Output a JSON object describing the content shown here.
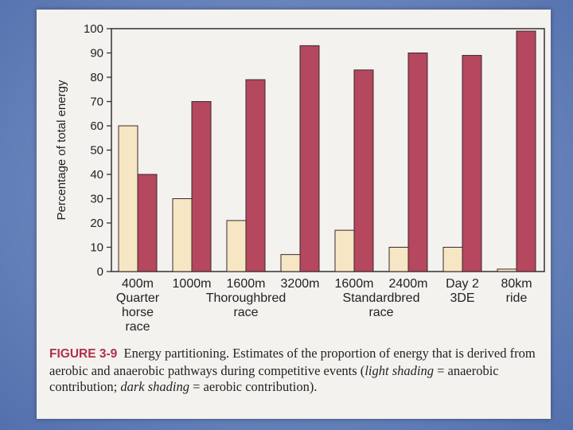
{
  "chart_data": {
    "type": "bar",
    "ylabel": "Percentage of total energy",
    "ylim": [
      0,
      100
    ],
    "yticks": [
      0,
      10,
      20,
      30,
      40,
      50,
      60,
      70,
      80,
      90,
      100
    ],
    "categories": [
      [
        "400m",
        "Quarter",
        "horse",
        "race"
      ],
      [
        "1000m"
      ],
      [
        "1600m"
      ],
      [
        "3200m"
      ],
      [
        "1600m"
      ],
      [
        "2400m"
      ],
      [
        "Day 2",
        "3DE"
      ],
      [
        "80km",
        "ride"
      ]
    ],
    "group_labels": [
      {
        "lines": [
          "Thoroughbred",
          "race"
        ],
        "span": [
          1,
          3
        ]
      },
      {
        "lines": [
          "Standardbred",
          "race"
        ],
        "span": [
          4,
          5
        ]
      }
    ],
    "series": [
      {
        "key": "anaerobic",
        "values": [
          60,
          30,
          21,
          7,
          17,
          10,
          10,
          1
        ],
        "color": "#f7e6c4"
      },
      {
        "key": "aerobic",
        "values": [
          40,
          70,
          79,
          93,
          83,
          90,
          89,
          99
        ],
        "color": "#b5475f"
      }
    ],
    "grid": false
  },
  "caption": {
    "figure_number": "FIGURE 3-9",
    "text_before": "Energy partitioning. Estimates of the proportion of energy that is derived from aerobic and anaerobic pathways during competitive events (",
    "light_term": "light shading",
    "light_def": " = anaerobic contribution; ",
    "dark_term": "dark shading",
    "dark_def": " = aerobic contribution)."
  }
}
